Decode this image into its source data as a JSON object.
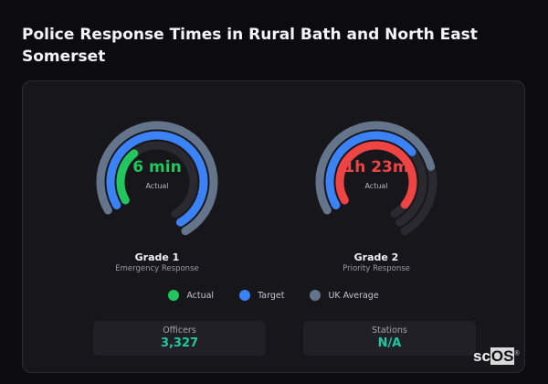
{
  "title": "Police Response Times in Rural Bath and North East Somerset",
  "gauges": [
    {
      "value": "6 min",
      "sublabel": "Actual",
      "title": "Grade 1",
      "description": "Emergency Response",
      "value_color": "#22c55e",
      "actual_pct": 0.3,
      "target_pct": 1.0,
      "uk_pct": 1.0,
      "actual_color": "#22c55e"
    },
    {
      "value": "1h 23m",
      "sublabel": "Actual",
      "title": "Grade 2",
      "description": "Priority Response",
      "value_color": "#ef4444",
      "actual_pct": 0.92,
      "target_pct": 0.63,
      "uk_pct": 0.72,
      "actual_color": "#ef4444"
    }
  ],
  "legend": [
    {
      "label": "Actual",
      "color": "#22c55e"
    },
    {
      "label": "Target",
      "color": "#3b82f6"
    },
    {
      "label": "UK Average",
      "color": "#64748b"
    }
  ],
  "stats": [
    {
      "label": "Officers",
      "value": "3,327"
    },
    {
      "label": "Stations",
      "value": "N/A"
    }
  ],
  "logo": {
    "prefix": "sc",
    "suffix": "OS",
    "mark": "®"
  }
}
